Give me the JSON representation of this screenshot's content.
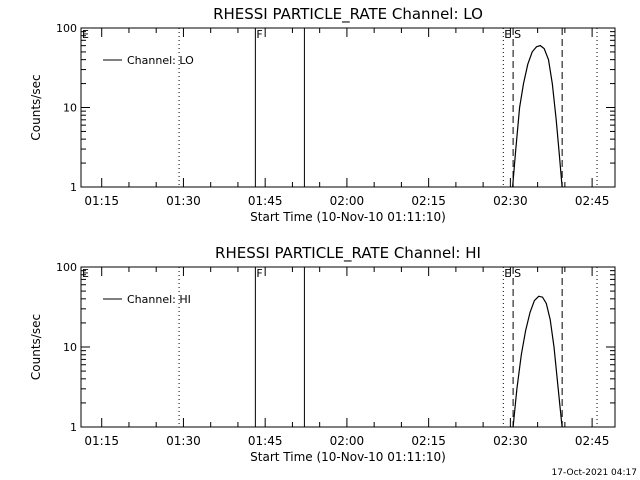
{
  "footer_timestamp": "17-Oct-2021 04:17",
  "chart_data": [
    {
      "type": "line",
      "title": "RHESSI PARTICLE_RATE Channel: LO",
      "xlabel": "Start Time (10-Nov-10 01:11:10)",
      "ylabel": "Counts/sec",
      "yscale": "log",
      "ylim": [
        1,
        100
      ],
      "xlim_minutes": [
        0,
        98
      ],
      "x_ticks": [
        {
          "label": "01:15",
          "minute": 3.8
        },
        {
          "label": "01:30",
          "minute": 18.8
        },
        {
          "label": "01:45",
          "minute": 33.8
        },
        {
          "label": "02:00",
          "minute": 48.8
        },
        {
          "label": "02:15",
          "minute": 63.8
        },
        {
          "label": "02:30",
          "minute": 78.8
        },
        {
          "label": "02:45",
          "minute": 93.8
        }
      ],
      "y_ticks": [
        {
          "label": "1",
          "value": 1
        },
        {
          "label": "10",
          "value": 10
        },
        {
          "label": "100",
          "value": 100
        }
      ],
      "legend": {
        "label": "Channel: LO",
        "position": "top-left"
      },
      "markers": [
        {
          "minute": 0,
          "style": "dotted",
          "label": "E"
        },
        {
          "minute": 18,
          "style": "dotted",
          "label": ""
        },
        {
          "minute": 32,
          "style": "solid",
          "label": "F"
        },
        {
          "minute": 41,
          "style": "solid",
          "label": ""
        },
        {
          "minute": 77.5,
          "style": "dotted",
          "label": "E"
        },
        {
          "minute": 79.3,
          "style": "dashed",
          "label": "S"
        },
        {
          "minute": 88.3,
          "style": "dashed",
          "label": ""
        },
        {
          "minute": 94.7,
          "style": "dotted",
          "label": ""
        }
      ],
      "series": [
        {
          "name": "Channel: LO",
          "x": [
            79.2,
            79.8,
            80.5,
            81.2,
            82.0,
            82.8,
            83.6,
            84.3,
            85.0,
            85.8,
            86.5,
            87.2,
            87.8,
            88.3
          ],
          "y": [
            1,
            3,
            10,
            20,
            35,
            50,
            58,
            60,
            55,
            40,
            20,
            7,
            2.5,
            1
          ]
        }
      ]
    },
    {
      "type": "line",
      "title": "RHESSI PARTICLE_RATE Channel: HI",
      "xlabel": "Start Time (10-Nov-10 01:11:10)",
      "ylabel": "Counts/sec",
      "yscale": "log",
      "ylim": [
        1,
        100
      ],
      "xlim_minutes": [
        0,
        98
      ],
      "x_ticks": [
        {
          "label": "01:15",
          "minute": 3.8
        },
        {
          "label": "01:30",
          "minute": 18.8
        },
        {
          "label": "01:45",
          "minute": 33.8
        },
        {
          "label": "02:00",
          "minute": 48.8
        },
        {
          "label": "02:15",
          "minute": 63.8
        },
        {
          "label": "02:30",
          "minute": 78.8
        },
        {
          "label": "02:45",
          "minute": 93.8
        }
      ],
      "y_ticks": [
        {
          "label": "1",
          "value": 1
        },
        {
          "label": "10",
          "value": 10
        },
        {
          "label": "100",
          "value": 100
        }
      ],
      "legend": {
        "label": "Channel: HI",
        "position": "top-left"
      },
      "markers": [
        {
          "minute": 0,
          "style": "dotted",
          "label": "E"
        },
        {
          "minute": 18,
          "style": "dotted",
          "label": ""
        },
        {
          "minute": 32,
          "style": "solid",
          "label": "F"
        },
        {
          "minute": 41,
          "style": "solid",
          "label": ""
        },
        {
          "minute": 77.5,
          "style": "dotted",
          "label": "E"
        },
        {
          "minute": 79.3,
          "style": "dashed",
          "label": "S"
        },
        {
          "minute": 88.3,
          "style": "dashed",
          "label": ""
        },
        {
          "minute": 94.7,
          "style": "dotted",
          "label": ""
        }
      ],
      "series": [
        {
          "name": "Channel: HI",
          "x": [
            79.3,
            80.0,
            80.8,
            81.6,
            82.4,
            83.2,
            84.0,
            84.7,
            85.4,
            86.1,
            86.8,
            87.4,
            87.9,
            88.3
          ],
          "y": [
            1,
            3,
            8,
            16,
            27,
            38,
            43,
            42,
            35,
            22,
            10,
            4,
            1.8,
            1
          ]
        }
      ]
    }
  ]
}
